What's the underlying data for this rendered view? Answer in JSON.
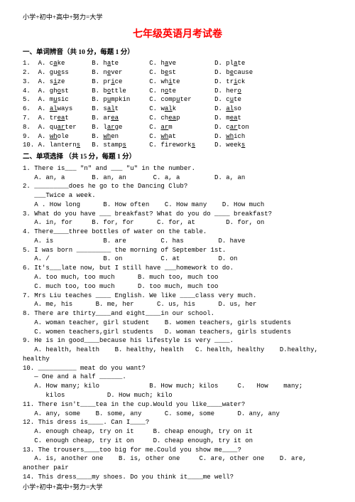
{
  "header": "小学+初中+高中+努力=大学",
  "footer": "小学+初中+高中+努力=大学",
  "title": "七年级英语月考试卷",
  "sectionI": {
    "head": "一、单词辨音（共 10 分，每题 1 分）",
    "rows": [
      "1.  A. cake       B. hate        C. have          D. plate",
      "2.  A. guess      B. never       C. best          D. because",
      "3.  A. size       B. price       C. white         D. trick",
      "4.  A. ghost      B. bottle      C. note          D. hero",
      "5.  A. music      B. pumpkin     C. computer      D. cute",
      "6.  A. always     B. salt        C. walk          D. also",
      "7.  A. treat      B. area        C. cheap         D. meat",
      "8.  A. quarter    B. large       C. arm           D. carton",
      "9.  A. whole      B. when        C. what          D. which",
      "10. A. lanterns   B. stamps      C. fireworks     D. weeks"
    ]
  },
  "sectionII": {
    "head": "二、单项选择 （共 15 分，每题 1 分）",
    "items": [
      {
        "lines": [
          "1. There is___ \"n\" and ___ \"u\" in the number.",
          "   A. an, a       B. an, an       C. a, a         D. a, an"
        ]
      },
      {
        "lines": [
          "2. _________does he go to the Dancing Club?",
          "   ___Twice a week.",
          "   A . How long      B. How often    C. How many    D. How much"
        ]
      },
      {
        "lines": [
          "3. What do you have ___ breakfast? What do you do ____ breakfast?",
          "   A. in, for     B. for, for      C. for, at        D. for, on"
        ]
      },
      {
        "lines": [
          "4. There____three bottles of water on the table.",
          "   A. is             B. are         C. has         D. have"
        ]
      },
      {
        "lines": [
          "5. I was born _________ the morning of September 1st.",
          "   A. /              B. on          C. at          D. on"
        ]
      },
      {
        "lines": [
          "6. It's___late now, but I still have ___homework to do.",
          "   A. too much, too much      B. much too, much too",
          "   C. much too, too much      D. too much, much too"
        ]
      },
      {
        "lines": [
          "7. Mrs Liu teaches ____ English. We like ____class very much.",
          "   A. me, his      B. me, her      C. us, his      D. us, her"
        ]
      },
      {
        "lines": [
          "8. There are thirty____and eight____in our school.",
          "   A. woman teacher, girl student    B. women teachers, girls students",
          "   C. women teachers,girl students   D. woman teachers, girls students"
        ]
      },
      {
        "lines": [
          "9. He is in good____because his lifestyle is very ____.",
          "   A. health, health    B. healthy, health   C. health, healthy    D.healthy,",
          "healthy"
        ]
      },
      {
        "lines": [
          "10. __________ meat do you want?",
          "   — One and a half ______.",
          "   A. How many; kilo             B. How much; kilos     C.   How    many;",
          "      kilos           D. How much; kilo"
        ]
      },
      {
        "lines": [
          "11. There isn't____tea in the cup.Would you like____water?",
          "   A. any, some    B. some, any      C. some, some      D. any, any"
        ]
      },
      {
        "lines": [
          "12. This dress is____. Can I____?",
          "   A. enough cheap, try on it     B. cheap enough, try on it",
          "   C. enough cheap, try it on     D. cheap enough, try it on"
        ]
      },
      {
        "lines": [
          "13. The trousers____too big for me.Could you show me____?",
          "   A. is, another one    B. is, other one     C. are, other one    D. are,",
          "another pair"
        ]
      },
      {
        "lines": [
          "14. This dress____my shoes. Do you think it____me well?"
        ]
      }
    ]
  }
}
